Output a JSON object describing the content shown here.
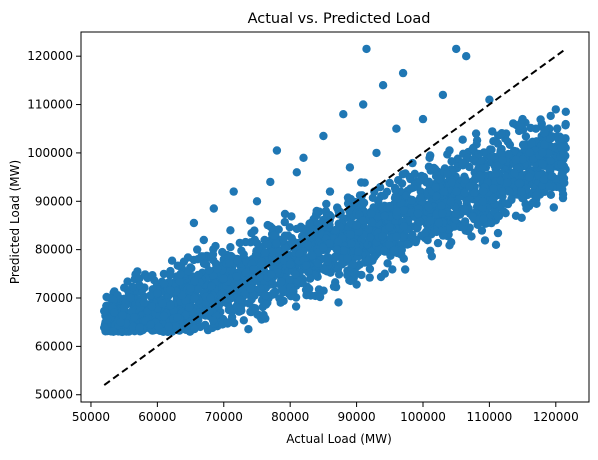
{
  "chart_data": {
    "type": "scatter",
    "title": "Actual vs. Predicted Load",
    "xlabel": "Actual Load (MW)",
    "ylabel": "Predicted Load (MW)",
    "xlim": [
      48500,
      125000
    ],
    "ylim": [
      48500,
      125000
    ],
    "x_ticks": [
      50000,
      60000,
      70000,
      80000,
      90000,
      100000,
      110000,
      120000
    ],
    "y_ticks": [
      50000,
      60000,
      70000,
      80000,
      90000,
      100000,
      110000,
      120000
    ],
    "x_tick_labels": [
      "50000",
      "60000",
      "70000",
      "80000",
      "90000",
      "100000",
      "110000",
      "120000"
    ],
    "y_tick_labels": [
      "50000",
      "60000",
      "70000",
      "80000",
      "90000",
      "100000",
      "110000",
      "120000"
    ],
    "grid": false,
    "point_color": "#1f77b4",
    "reference_line_color": "#000000",
    "series": [
      {
        "name": "",
        "points": [
          [
            52000,
            67300
          ],
          [
            53500,
            67000
          ],
          [
            54500,
            65000
          ],
          [
            55000,
            68000
          ],
          [
            56000,
            70000
          ],
          [
            56500,
            66000
          ],
          [
            57000,
            75500
          ],
          [
            58000,
            69000
          ],
          [
            59000,
            64500
          ],
          [
            60000,
            71000
          ],
          [
            61000,
            73000
          ],
          [
            62000,
            68500
          ],
          [
            63000,
            66000
          ],
          [
            64000,
            77500
          ],
          [
            65000,
            72000
          ],
          [
            65500,
            85500
          ],
          [
            66000,
            80000
          ],
          [
            67000,
            82000
          ],
          [
            68000,
            70000
          ],
          [
            68500,
            88500
          ],
          [
            69000,
            76000
          ],
          [
            70000,
            74000
          ],
          [
            71000,
            84000
          ],
          [
            71500,
            92000
          ],
          [
            72000,
            68000
          ],
          [
            73000,
            79000
          ],
          [
            74000,
            86000
          ],
          [
            75000,
            90000
          ],
          [
            75500,
            72000
          ],
          [
            76000,
            66500
          ],
          [
            77000,
            94000
          ],
          [
            78000,
            100500
          ],
          [
            79000,
            82000
          ],
          [
            80000,
            77000
          ],
          [
            81000,
            96000
          ],
          [
            82000,
            99000
          ],
          [
            83000,
            74000
          ],
          [
            84000,
            88000
          ],
          [
            85000,
            103500
          ],
          [
            86000,
            92000
          ],
          [
            87000,
            80000
          ],
          [
            88000,
            108000
          ],
          [
            89000,
            97000
          ],
          [
            90000,
            85000
          ],
          [
            91000,
            110000
          ],
          [
            91500,
            121500
          ],
          [
            92000,
            76000
          ],
          [
            93000,
            100000
          ],
          [
            94000,
            114000
          ],
          [
            95000,
            89000
          ],
          [
            96000,
            105000
          ],
          [
            97000,
            116500
          ],
          [
            98000,
            95000
          ],
          [
            99000,
            82000
          ],
          [
            100000,
            107000
          ],
          [
            101000,
            99000
          ],
          [
            102000,
            91000
          ],
          [
            103000,
            112000
          ],
          [
            104000,
            100500
          ],
          [
            105000,
            121500
          ],
          [
            106000,
            98000
          ],
          [
            106500,
            120000
          ],
          [
            107000,
            93000
          ],
          [
            108000,
            104000
          ],
          [
            109000,
            90000
          ],
          [
            110000,
            111000
          ],
          [
            111000,
            81000
          ],
          [
            112000,
            98500
          ],
          [
            113000,
            92000
          ],
          [
            114000,
            87000
          ],
          [
            115000,
            107000
          ],
          [
            116000,
            95000
          ],
          [
            117000,
            105000
          ],
          [
            118000,
            100000
          ],
          [
            119000,
            93000
          ],
          [
            120000,
            109000
          ],
          [
            121000,
            103000
          ],
          [
            121500,
            108500
          ]
        ],
        "band": {
          "slope_pred_per_actual": 0.54,
          "intercept": 34200,
          "lower_bound": 63000
        }
      }
    ],
    "reference_line": {
      "from": [
        52000,
        52000
      ],
      "to": [
        121500,
        121500
      ],
      "style": "dashed"
    }
  }
}
